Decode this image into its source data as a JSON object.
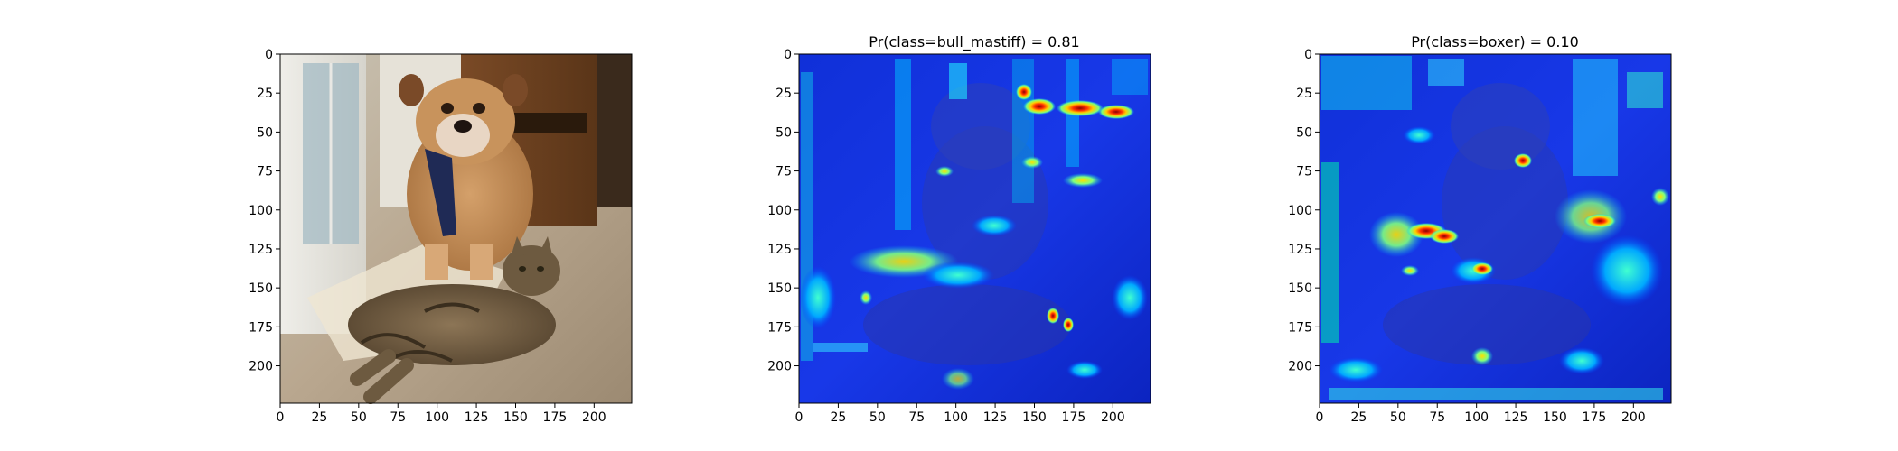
{
  "figure": {
    "panels": [
      {
        "id": "input",
        "title": "",
        "image_desc": "photo: bulldog and tabby cat",
        "xticks": [
          "0",
          "25",
          "50",
          "75",
          "100",
          "125",
          "150",
          "175",
          "200"
        ],
        "yticks": [
          "0",
          "25",
          "50",
          "75",
          "100",
          "125",
          "150",
          "175",
          "200"
        ]
      },
      {
        "id": "bull_mastiff",
        "title": "Pr(class=bull_mastiff) =  0.81",
        "image_desc": "saliency heatmap overlay",
        "xticks": [
          "0",
          "25",
          "50",
          "75",
          "100",
          "125",
          "150",
          "175",
          "200"
        ],
        "yticks": [
          "0",
          "25",
          "50",
          "75",
          "100",
          "125",
          "150",
          "175",
          "200"
        ]
      },
      {
        "id": "boxer",
        "title": "Pr(class=boxer) =  0.10",
        "image_desc": "saliency heatmap overlay",
        "xticks": [
          "0",
          "25",
          "50",
          "75",
          "100",
          "125",
          "150",
          "175",
          "200"
        ],
        "yticks": [
          "0",
          "25",
          "50",
          "75",
          "100",
          "125",
          "150",
          "175",
          "200"
        ]
      }
    ],
    "tick_values": [
      0,
      25,
      50,
      75,
      100,
      125,
      150,
      175,
      200
    ],
    "axis_max": 224
  }
}
